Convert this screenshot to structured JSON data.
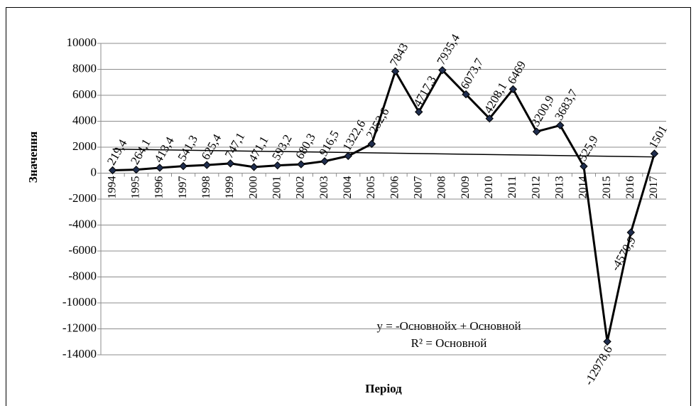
{
  "chart_data": {
    "type": "line",
    "categories": [
      "1994",
      "1995",
      "1996",
      "1997",
      "1998",
      "1999",
      "2000",
      "2001",
      "2002",
      "2003",
      "2004",
      "2005",
      "2006",
      "2007",
      "2008",
      "2009",
      "2010",
      "2011",
      "2012",
      "2013",
      "2014",
      "2015",
      "2016",
      "2017"
    ],
    "values": [
      219.4,
      264.1,
      413.4,
      541.3,
      625.4,
      747.1,
      471.1,
      593.2,
      680.3,
      916.5,
      1322.6,
      2252.6,
      7843,
      4717.3,
      7935.4,
      6073.7,
      4208.1,
      6469,
      3200.9,
      3683.7,
      525.9,
      -12978.6,
      -4570.9,
      1501
    ],
    "value_labels": [
      "219,4",
      "264,1",
      "413,4",
      "541,3",
      "625,4",
      "747,1",
      "471,1",
      "593,2",
      "680,3",
      "916,5",
      "1322,6",
      "2252,6",
      "7843",
      "4717,3",
      "7935,4",
      "6073,7",
      "4208,1",
      "6469",
      "3200,9",
      "3683,7",
      "525,9",
      "-12978,6",
      "-4570,9",
      "1501"
    ],
    "color": "#000000",
    "marker_color": "#1f2d4d",
    "trend_line": [
      1850,
      1250
    ],
    "ylim": [
      -14000,
      10000
    ],
    "yticks": [
      -14000,
      -12000,
      -10000,
      -8000,
      -6000,
      -4000,
      -2000,
      0,
      2000,
      4000,
      6000,
      8000,
      10000
    ],
    "grid": true,
    "ylabel": "Значення",
    "xlabel": "Період",
    "annotations": [
      "y = -Основнойx + Основной",
      "R² = Основной"
    ]
  }
}
